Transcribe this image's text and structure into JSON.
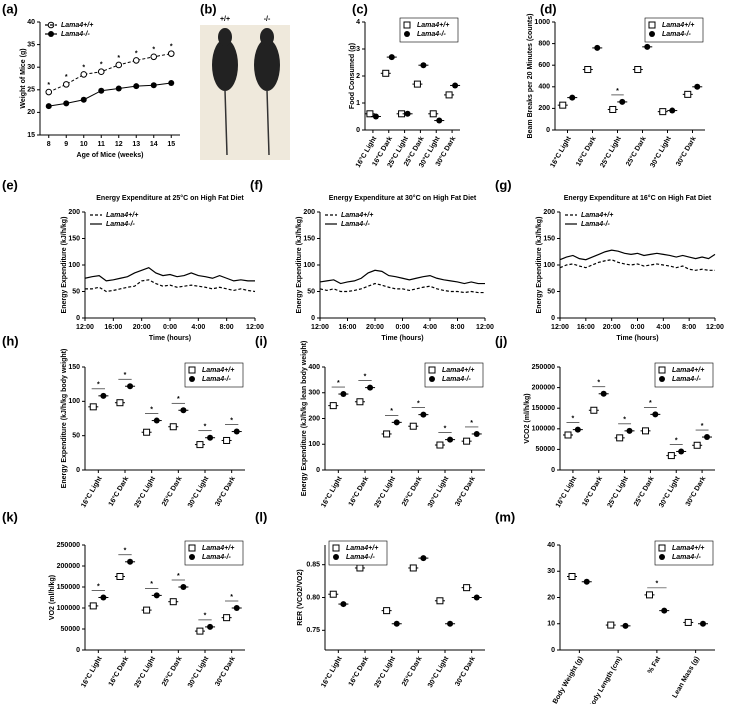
{
  "chart_data": [
    {
      "type": "line",
      "panel": "(a)",
      "xlabel": "Age of Mice (weeks)",
      "ylabel": "Weight of Mice (g)",
      "x": [
        8,
        9,
        10,
        11,
        12,
        13,
        14,
        15
      ],
      "xlim": [
        7.5,
        15.5
      ],
      "xticks": [
        8,
        9,
        10,
        11,
        12,
        13,
        14,
        15
      ],
      "ylim": [
        15,
        40
      ],
      "yticks": [
        15,
        20,
        25,
        30,
        35,
        40
      ],
      "legend": "upper left",
      "sig_label": "*",
      "sig_series": 0,
      "sig": [
        0,
        1,
        2,
        3,
        4,
        5,
        6,
        7
      ],
      "series": [
        {
          "name": "Lama4+/+",
          "color": "#000000",
          "marker": "circle-open",
          "dash": true,
          "values": [
            24.5,
            26.2,
            28.4,
            29.0,
            30.5,
            31.5,
            32.3,
            33.0
          ]
        },
        {
          "name": "Lama4-/-",
          "color": "#000000",
          "marker": "circle-filled",
          "dash": false,
          "values": [
            21.4,
            22.0,
            22.8,
            24.8,
            25.3,
            25.8,
            26.0,
            26.5
          ]
        }
      ]
    },
    {
      "type": "photo",
      "panel": "(b)",
      "labels": [
        "+/+",
        "-/-"
      ]
    },
    {
      "type": "dot",
      "panel": "(c)",
      "ylabel": "Food Consumed (g)",
      "categories": [
        "16°C Light",
        "16°C Dark",
        "25°C Light",
        "25°C Dark",
        "30°C Light",
        "30°C Dark"
      ],
      "ylim": [
        0,
        4
      ],
      "yticks": [
        0,
        1,
        2,
        3,
        4
      ],
      "legend": "upper right",
      "sig_label": "*",
      "sig": [],
      "series": [
        {
          "name": "Lama4+/+",
          "color": "#000000",
          "marker": "square-open",
          "values": [
            0.6,
            2.1,
            0.6,
            1.7,
            0.6,
            1.3
          ]
        },
        {
          "name": "Lama4-/-",
          "color": "#000000",
          "marker": "circle-filled",
          "values": [
            0.5,
            2.7,
            0.6,
            2.4,
            0.35,
            1.65
          ]
        }
      ]
    },
    {
      "type": "dot",
      "panel": "(d)",
      "ylabel": "Beam Breaks per 20 Minutes (counts)",
      "categories": [
        "16°C Light",
        "16°C Dark",
        "25°C Light",
        "25°C Dark",
        "30°C Light",
        "30°C Dark"
      ],
      "ylim": [
        0,
        1000
      ],
      "yticks": [
        0,
        200,
        400,
        600,
        800,
        1000
      ],
      "legend": "upper right",
      "sig_label": "*",
      "sig": [
        2
      ],
      "series": [
        {
          "name": "Lama4+/+",
          "color": "#000000",
          "marker": "square-open",
          "values": [
            230,
            560,
            190,
            560,
            170,
            330
          ]
        },
        {
          "name": "Lama4-/-",
          "color": "#000000",
          "marker": "circle-filled",
          "values": [
            300,
            760,
            260,
            770,
            180,
            400
          ]
        }
      ]
    },
    {
      "type": "line",
      "panel": "(e)",
      "title": "Energy Expenditure at 25°C on High Fat Diet",
      "xlabel": "Time (hours)",
      "ylabel": "Energy Expenditure (kJ/h/kg)",
      "x": [
        0,
        1,
        2,
        3,
        4,
        5,
        6,
        7,
        8,
        9,
        10,
        11,
        12,
        13,
        14,
        15,
        16,
        17,
        18,
        19,
        20,
        21,
        22,
        23,
        24
      ],
      "xlim": [
        0,
        24
      ],
      "xticks": [
        {
          "value": 0,
          "label": "12:00"
        },
        {
          "value": 4,
          "label": "16:00"
        },
        {
          "value": 8,
          "label": "20:00"
        },
        {
          "value": 12,
          "label": "0:00"
        },
        {
          "value": 16,
          "label": "4:00"
        },
        {
          "value": 20,
          "label": "8:00"
        },
        {
          "value": 24,
          "label": "12:00"
        }
      ],
      "ylim": [
        0,
        200
      ],
      "yticks": [
        0,
        50,
        100,
        150,
        200
      ],
      "legend": "upper left",
      "series": [
        {
          "name": "Lama4+/+",
          "color": "#000000",
          "dash": true,
          "values": [
            55,
            55,
            58,
            50,
            52,
            55,
            58,
            60,
            70,
            72,
            65,
            60,
            62,
            58,
            60,
            62,
            60,
            58,
            55,
            58,
            55,
            52,
            55,
            52,
            50
          ]
        },
        {
          "name": "Lama4-/-",
          "color": "#000000",
          "dash": false,
          "values": [
            75,
            78,
            80,
            70,
            72,
            75,
            78,
            85,
            90,
            95,
            85,
            80,
            82,
            78,
            80,
            85,
            80,
            78,
            75,
            80,
            75,
            70,
            72,
            70,
            70
          ]
        }
      ]
    },
    {
      "type": "line",
      "panel": "(f)",
      "title": "Energy Expenditure at 30°C on High Fat Diet",
      "xlabel": "Time (hours)",
      "ylabel": "Energy Expenditure (kJ/h/kg)",
      "x": [
        0,
        1,
        2,
        3,
        4,
        5,
        6,
        7,
        8,
        9,
        10,
        11,
        12,
        13,
        14,
        15,
        16,
        17,
        18,
        19,
        20,
        21,
        22,
        23,
        24
      ],
      "xlim": [
        0,
        24
      ],
      "xticks": [
        {
          "value": 0,
          "label": "12:00"
        },
        {
          "value": 4,
          "label": "16:00"
        },
        {
          "value": 8,
          "label": "20:00"
        },
        {
          "value": 12,
          "label": "0:00"
        },
        {
          "value": 16,
          "label": "4:00"
        },
        {
          "value": 20,
          "label": "8:00"
        },
        {
          "value": 24,
          "label": "12:00"
        }
      ],
      "ylim": [
        0,
        200
      ],
      "yticks": [
        0,
        50,
        100,
        150,
        200
      ],
      "legend": "upper left",
      "series": [
        {
          "name": "Lama4+/+",
          "color": "#000000",
          "dash": true,
          "values": [
            55,
            52,
            55,
            50,
            50,
            52,
            55,
            60,
            65,
            62,
            58,
            55,
            55,
            52,
            55,
            58,
            60,
            55,
            52,
            50,
            50,
            48,
            50,
            48,
            48
          ]
        },
        {
          "name": "Lama4-/-",
          "color": "#000000",
          "dash": false,
          "values": [
            68,
            70,
            72,
            65,
            68,
            70,
            75,
            85,
            90,
            88,
            80,
            78,
            75,
            72,
            75,
            78,
            80,
            75,
            72,
            70,
            68,
            65,
            68,
            65,
            65
          ]
        }
      ]
    },
    {
      "type": "line",
      "panel": "(g)",
      "title": "Energy Expenditure at 16°C on High Fat Diet",
      "xlabel": "Time (hours)",
      "ylabel": "Energy Expenditure (kJ/h/kg)",
      "x": [
        0,
        1,
        2,
        3,
        4,
        5,
        6,
        7,
        8,
        9,
        10,
        11,
        12,
        13,
        14,
        15,
        16,
        17,
        18,
        19,
        20,
        21,
        22,
        23,
        24
      ],
      "xlim": [
        0,
        24
      ],
      "xticks": [
        {
          "value": 0,
          "label": "12:00"
        },
        {
          "value": 4,
          "label": "16:00"
        },
        {
          "value": 8,
          "label": "20:00"
        },
        {
          "value": 12,
          "label": "0:00"
        },
        {
          "value": 16,
          "label": "4:00"
        },
        {
          "value": 20,
          "label": "8:00"
        },
        {
          "value": 24,
          "label": "12:00"
        }
      ],
      "ylim": [
        0,
        200
      ],
      "yticks": [
        0,
        50,
        100,
        150,
        200
      ],
      "legend": "upper left",
      "series": [
        {
          "name": "Lama4+/+",
          "color": "#000000",
          "dash": true,
          "values": [
            95,
            100,
            102,
            98,
            95,
            100,
            105,
            108,
            110,
            105,
            102,
            100,
            102,
            98,
            100,
            102,
            100,
            98,
            95,
            98,
            92,
            90,
            92,
            90,
            90
          ]
        },
        {
          "name": "Lama4-/-",
          "color": "#000000",
          "dash": false,
          "values": [
            110,
            115,
            118,
            112,
            110,
            115,
            120,
            125,
            128,
            126,
            122,
            120,
            122,
            118,
            120,
            122,
            120,
            118,
            115,
            118,
            115,
            112,
            115,
            112,
            120
          ]
        }
      ]
    },
    {
      "type": "dot",
      "panel": "(h)",
      "ylabel": "Energy Expenditure (kJ/h/kg body weight)",
      "categories": [
        "16°C Light",
        "16°C Dark",
        "25°C Light",
        "25°C Dark",
        "30°C Light",
        "30°C Dark"
      ],
      "ylim": [
        0,
        150
      ],
      "yticks": [
        0,
        50,
        100,
        150
      ],
      "legend": "upper right",
      "sig_label": "*",
      "sig": [
        0,
        1,
        2,
        3,
        4,
        5
      ],
      "series": [
        {
          "name": "Lama4+/+",
          "color": "#000000",
          "marker": "square-open",
          "values": [
            92,
            98,
            55,
            63,
            37,
            43
          ]
        },
        {
          "name": "Lama4-/-",
          "color": "#000000",
          "marker": "circle-filled",
          "values": [
            108,
            122,
            72,
            87,
            47,
            56
          ]
        }
      ]
    },
    {
      "type": "dot",
      "panel": "(i)",
      "ylabel": "Energy Expenditure (kJ/h/kg lean body weight)",
      "categories": [
        "16°C Light",
        "16°C Dark",
        "25°C Light",
        "25°C Dark",
        "30°C Light",
        "30°C Dark"
      ],
      "ylim": [
        0,
        400
      ],
      "yticks": [
        0,
        100,
        200,
        300,
        400
      ],
      "legend": "upper right",
      "sig_label": "*",
      "sig": [
        0,
        1,
        2,
        3,
        4,
        5
      ],
      "series": [
        {
          "name": "Lama4+/+",
          "color": "#000000",
          "marker": "square-open",
          "values": [
            250,
            265,
            140,
            170,
            97,
            112
          ]
        },
        {
          "name": "Lama4-/-",
          "color": "#000000",
          "marker": "circle-filled",
          "values": [
            295,
            320,
            185,
            215,
            118,
            140
          ]
        }
      ]
    },
    {
      "type": "dot",
      "panel": "(j)",
      "ylabel": "VCO2 (ml/h/kg)",
      "categories": [
        "16°C Light",
        "16°C Dark",
        "25°C Light",
        "25°C Dark",
        "30°C Light",
        "30°C Dark"
      ],
      "ylim": [
        0,
        250000
      ],
      "yticks": [
        0,
        50000,
        100000,
        150000,
        200000,
        250000
      ],
      "legend": "upper right",
      "sig_label": "*",
      "sig": [
        0,
        1,
        2,
        3,
        4,
        5
      ],
      "series": [
        {
          "name": "Lama4+/+",
          "color": "#000000",
          "marker": "square-open",
          "values": [
            85000,
            145000,
            78000,
            95000,
            35000,
            60000
          ]
        },
        {
          "name": "Lama4-/-",
          "color": "#000000",
          "marker": "circle-filled",
          "values": [
            98000,
            185000,
            95000,
            135000,
            45000,
            80000
          ]
        }
      ]
    },
    {
      "type": "dot",
      "panel": "(k)",
      "ylabel": "VO2 (ml/h/kg)",
      "categories": [
        "16°C Light",
        "16°C Dark",
        "25°C Light",
        "25°C Dark",
        "30°C Light",
        "30°C Dark"
      ],
      "ylim": [
        0,
        250000
      ],
      "yticks": [
        0,
        50000,
        100000,
        150000,
        200000,
        250000
      ],
      "legend": "upper right",
      "sig_label": "*",
      "sig": [
        0,
        1,
        2,
        3,
        4,
        5
      ],
      "series": [
        {
          "name": "Lama4+/+",
          "color": "#000000",
          "marker": "square-open",
          "values": [
            105000,
            175000,
            95000,
            115000,
            45000,
            77000
          ]
        },
        {
          "name": "Lama4-/-",
          "color": "#000000",
          "marker": "circle-filled",
          "values": [
            125000,
            210000,
            130000,
            150000,
            55000,
            100000
          ]
        }
      ]
    },
    {
      "type": "dot",
      "panel": "(l)",
      "ylabel": "RER (VCO2/VO2)",
      "categories": [
        "16°C Light",
        "16°C Dark",
        "25°C Light",
        "25°C Dark",
        "30°C Light",
        "30°C Dark"
      ],
      "ylim": [
        0.72,
        0.88
      ],
      "yticks": [
        {
          "value": 0.75,
          "label": "0.75"
        },
        {
          "value": 0.8,
          "label": "0.80"
        },
        {
          "value": 0.85,
          "label": "0.85"
        }
      ],
      "legend": "upper left",
      "sig_label": "*",
      "sig": [],
      "series": [
        {
          "name": "Lama4+/+",
          "color": "#000000",
          "marker": "square-open",
          "values": [
            0.805,
            0.845,
            0.78,
            0.845,
            0.795,
            0.815
          ]
        },
        {
          "name": "Lama4-/-",
          "color": "#000000",
          "marker": "circle-filled",
          "values": [
            0.79,
            0.86,
            0.76,
            0.86,
            0.76,
            0.8
          ]
        }
      ]
    },
    {
      "type": "dot",
      "panel": "(m)",
      "categories": [
        "Body Weight (g)",
        "Body Length (cm)",
        "% Fat",
        "Lean Mass (g)"
      ],
      "ylim": [
        0,
        40
      ],
      "yticks": [
        0,
        10,
        20,
        30,
        40
      ],
      "legend": "upper right",
      "sig_label": "*",
      "sig": [
        2
      ],
      "series": [
        {
          "name": "Lama4+/+",
          "color": "#000000",
          "marker": "square-open",
          "values": [
            28,
            9.5,
            21,
            10.5
          ]
        },
        {
          "name": "Lama4-/-",
          "color": "#000000",
          "marker": "circle-filled",
          "values": [
            26,
            9.2,
            15,
            10
          ]
        }
      ]
    }
  ]
}
